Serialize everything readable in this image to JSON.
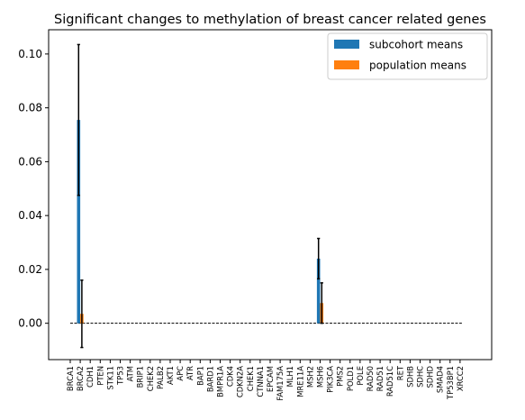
{
  "chart_data": {
    "type": "bar",
    "title": "Significant changes to methylation of breast cancer related genes",
    "xlabel": "",
    "ylabel": "",
    "ylim": [
      -0.0135,
      0.109
    ],
    "yticks": [
      0.0,
      0.02,
      0.04,
      0.06,
      0.08,
      0.1
    ],
    "ytick_labels": [
      "0.00",
      "0.02",
      "0.04",
      "0.06",
      "0.08",
      "0.10"
    ],
    "legend_position": "top-right",
    "grid": false,
    "categories": [
      "BRCA1",
      "BRCA2",
      "CDH1",
      "PTEN",
      "STK11",
      "TP53",
      "ATM",
      "BRIP1",
      "CHEK2",
      "PALB2",
      "AKT1",
      "APC",
      "ATR",
      "BAP1",
      "BARD1",
      "BMPR1A",
      "CDK4",
      "CDKN2A",
      "CHEK1",
      "CTNNA1",
      "EPCAM",
      "FAM175A",
      "MLH1",
      "MRE11A",
      "MSH2",
      "MSH6",
      "PIK3CA",
      "PMS2",
      "POLD1",
      "POLE",
      "RAD50",
      "RAD51",
      "RAD51C",
      "RET",
      "SDHB",
      "SDHC",
      "SDHD",
      "SMAD4",
      "TP53BP1",
      "XRCC2"
    ],
    "series": [
      {
        "name": "subcohort means",
        "color": "#1f77b4",
        "values": [
          0,
          0.0755,
          0,
          0,
          0,
          0,
          0,
          0,
          0,
          0,
          0,
          0,
          0,
          0,
          0,
          0,
          0,
          0,
          0,
          0,
          0,
          0,
          0,
          0,
          0,
          0.024,
          0,
          0,
          0,
          0,
          0,
          0,
          0,
          0,
          0,
          0,
          0,
          0,
          0,
          0
        ],
        "errors": [
          0,
          0.028,
          0,
          0,
          0,
          0,
          0,
          0,
          0,
          0,
          0,
          0,
          0,
          0,
          0,
          0,
          0,
          0,
          0,
          0,
          0,
          0,
          0,
          0,
          0,
          0.0075,
          0,
          0,
          0,
          0,
          0,
          0,
          0,
          0,
          0,
          0,
          0,
          0,
          0,
          0
        ]
      },
      {
        "name": "population means",
        "color": "#ff7f0e",
        "values": [
          0,
          0.0035,
          0,
          0,
          0,
          0,
          0,
          0,
          0,
          0,
          0,
          0,
          0,
          0,
          0,
          0,
          0,
          0,
          0,
          0,
          0,
          0,
          0,
          0,
          0,
          0.0075,
          0,
          0,
          0,
          0,
          0,
          0,
          0,
          0,
          0,
          0,
          0,
          0,
          0,
          0
        ],
        "errors": [
          0,
          0.0125,
          0,
          0,
          0,
          0,
          0,
          0,
          0,
          0,
          0,
          0,
          0,
          0,
          0,
          0,
          0,
          0,
          0,
          0,
          0,
          0,
          0,
          0,
          0,
          0.0075,
          0,
          0,
          0,
          0,
          0,
          0,
          0,
          0,
          0,
          0,
          0,
          0,
          0,
          0
        ]
      }
    ]
  }
}
